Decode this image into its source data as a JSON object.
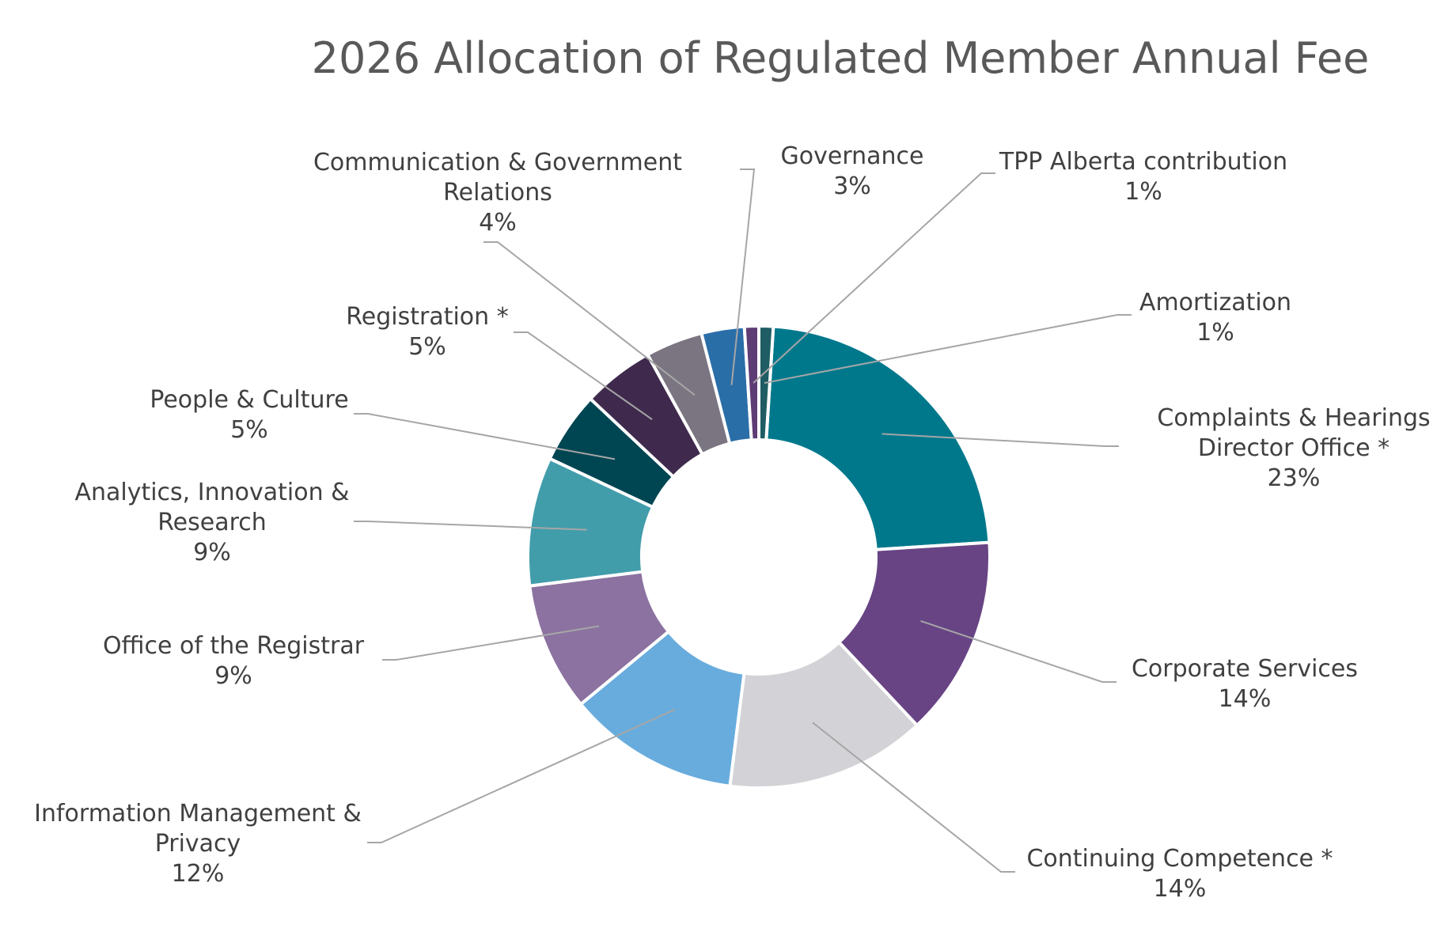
{
  "chart_data": {
    "type": "pie",
    "variant": "donut",
    "title": "2026 Allocation of Regulated Member Annual Fee",
    "unit": "%",
    "slices": [
      {
        "label": [
          "Complaints & Hearings",
          "Director Office *"
        ],
        "value": 23,
        "value_label": "23%",
        "color": "#00788c"
      },
      {
        "label": [
          "Corporate Services"
        ],
        "value": 14,
        "value_label": "14%",
        "color": "#684485"
      },
      {
        "label": [
          "Continuing Competence *"
        ],
        "value": 14,
        "value_label": "14%",
        "color": "#d3d3d7"
      },
      {
        "label": [
          "Information Management &",
          "Privacy"
        ],
        "value": 12,
        "value_label": "12%",
        "color": "#68acdd"
      },
      {
        "label": [
          "Office of the Registrar"
        ],
        "value": 9,
        "value_label": "9%",
        "color": "#8c72a0"
      },
      {
        "label": [
          "Analytics, Innovation &",
          "Research"
        ],
        "value": 9,
        "value_label": "9%",
        "color": "#429dab"
      },
      {
        "label": [
          "People & Culture"
        ],
        "value": 5,
        "value_label": "5%",
        "color": "#004652"
      },
      {
        "label": [
          "Registration *"
        ],
        "value": 5,
        "value_label": "5%",
        "color": "#3f2a4d"
      },
      {
        "label": [
          "Communication & Government",
          "Relations"
        ],
        "value": 4,
        "value_label": "4%",
        "color": "#7a7580"
      },
      {
        "label": [
          "Governance"
        ],
        "value": 3,
        "value_label": "3%",
        "color": "#2a6ea8"
      },
      {
        "label": [
          "TPP Alberta contribution"
        ],
        "value": 1,
        "value_label": "1%",
        "color": "#5e3c74"
      },
      {
        "label": [
          "Amortization"
        ],
        "value": 1,
        "value_label": "1%",
        "color": "#1f5c63"
      }
    ]
  }
}
